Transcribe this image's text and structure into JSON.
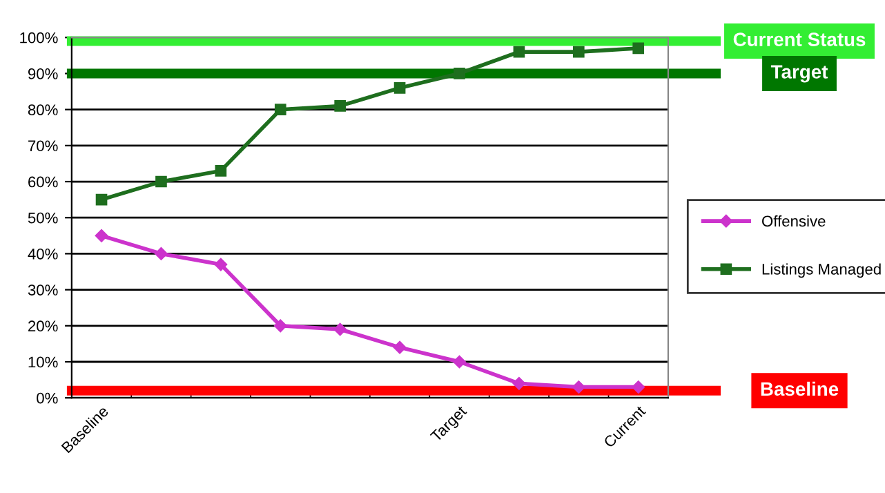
{
  "chart_data": {
    "type": "line",
    "categories": [
      "Baseline",
      null,
      null,
      null,
      null,
      null,
      "Target",
      null,
      null,
      "Current"
    ],
    "series": [
      {
        "name": "Offensive",
        "color": "#cc33cc",
        "marker": "diamond",
        "values": [
          45,
          40,
          37,
          20,
          19,
          14,
          10,
          4,
          3,
          3
        ]
      },
      {
        "name": "Listings Managed",
        "color": "#1e6e1e",
        "marker": "square",
        "values": [
          55,
          60,
          63,
          80,
          81,
          86,
          90,
          96,
          96,
          97
        ]
      }
    ],
    "ylim": [
      0,
      100
    ],
    "yticks": [
      {
        "value": 0,
        "label": "0%"
      },
      {
        "value": 10,
        "label": "10%"
      },
      {
        "value": 20,
        "label": "20%"
      },
      {
        "value": 30,
        "label": "30%"
      },
      {
        "value": 40,
        "label": "40%"
      },
      {
        "value": 50,
        "label": "50%"
      },
      {
        "value": 60,
        "label": "60%"
      },
      {
        "value": 70,
        "label": "70%"
      },
      {
        "value": 80,
        "label": "80%"
      },
      {
        "value": 90,
        "label": "90%"
      },
      {
        "value": 100,
        "label": "100%"
      }
    ],
    "ref_lines": [
      {
        "axis": "y",
        "value": 99,
        "label": "Current Status",
        "color": "#33ee33"
      },
      {
        "axis": "y",
        "value": 90,
        "label": "Target",
        "color": "#007700"
      },
      {
        "axis": "y",
        "value": 2,
        "label": "Baseline",
        "color": "#ff0000"
      }
    ],
    "grid": "y",
    "legend": "right"
  }
}
